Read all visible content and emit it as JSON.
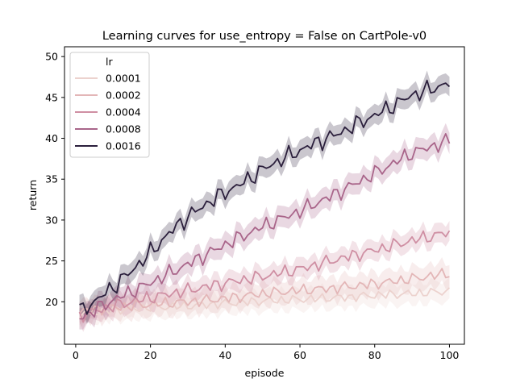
{
  "chart_data": {
    "type": "line",
    "title": "Learning curves for use_entropy = False on CartPole-v0",
    "xlabel": "episode",
    "ylabel": "return",
    "xlim": [
      -3,
      104
    ],
    "ylim": [
      14.8,
      51.2
    ],
    "xticks": [
      0,
      20,
      40,
      60,
      80,
      100
    ],
    "yticks": [
      20,
      25,
      30,
      35,
      40,
      45,
      50
    ],
    "grid": false,
    "legend": {
      "title": "lr",
      "position": "top-left"
    },
    "series": [
      {
        "name": "0.0001",
        "color": "#ecd2ce",
        "band_halfwidth": 1.3,
        "points": [
          [
            1,
            18.5
          ],
          [
            10,
            19.0
          ],
          [
            20,
            19.3
          ],
          [
            30,
            19.5
          ],
          [
            40,
            19.8
          ],
          [
            50,
            20.1
          ],
          [
            60,
            20.3
          ],
          [
            70,
            20.5
          ],
          [
            80,
            20.8
          ],
          [
            90,
            21.0
          ],
          [
            100,
            21.3
          ]
        ]
      },
      {
        "name": "0.0002",
        "color": "#e3b6b7",
        "band_halfwidth": 1.4,
        "points": [
          [
            1,
            18.8
          ],
          [
            10,
            19.3
          ],
          [
            20,
            19.7
          ],
          [
            30,
            20.0
          ],
          [
            40,
            20.4
          ],
          [
            50,
            21.0
          ],
          [
            60,
            21.4
          ],
          [
            70,
            21.7
          ],
          [
            80,
            22.2
          ],
          [
            90,
            22.8
          ],
          [
            100,
            23.5
          ]
        ]
      },
      {
        "name": "0.0004",
        "color": "#cf8fa3",
        "band_halfwidth": 1.2,
        "points": [
          [
            1,
            18.3
          ],
          [
            10,
            19.5
          ],
          [
            20,
            20.5
          ],
          [
            30,
            21.4
          ],
          [
            40,
            22.3
          ],
          [
            50,
            23.1
          ],
          [
            60,
            24.0
          ],
          [
            70,
            25.2
          ],
          [
            80,
            26.3
          ],
          [
            90,
            27.5
          ],
          [
            100,
            28.5
          ]
        ]
      },
      {
        "name": "0.0008",
        "color": "#a9658a",
        "band_halfwidth": 1.3,
        "points": [
          [
            1,
            18.0
          ],
          [
            10,
            20.2
          ],
          [
            20,
            22.3
          ],
          [
            30,
            24.6
          ],
          [
            40,
            27.0
          ],
          [
            50,
            29.2
          ],
          [
            60,
            31.1
          ],
          [
            70,
            33.3
          ],
          [
            80,
            35.7
          ],
          [
            90,
            38.2
          ],
          [
            100,
            39.7
          ]
        ]
      },
      {
        "name": "0.0016",
        "color": "#2b1f3c",
        "band_halfwidth": 1.2,
        "points": [
          [
            1,
            18.8
          ],
          [
            5,
            20.0
          ],
          [
            10,
            21.8
          ],
          [
            15,
            23.8
          ],
          [
            20,
            26.0
          ],
          [
            25,
            28.4
          ],
          [
            30,
            30.4
          ],
          [
            35,
            32.0
          ],
          [
            40,
            33.4
          ],
          [
            45,
            34.6
          ],
          [
            50,
            36.2
          ],
          [
            55,
            37.4
          ],
          [
            60,
            38.5
          ],
          [
            65,
            39.6
          ],
          [
            70,
            40.5
          ],
          [
            75,
            41.7
          ],
          [
            80,
            42.8
          ],
          [
            85,
            44.0
          ],
          [
            90,
            45.3
          ],
          [
            95,
            46.0
          ],
          [
            100,
            46.8
          ]
        ]
      }
    ]
  }
}
